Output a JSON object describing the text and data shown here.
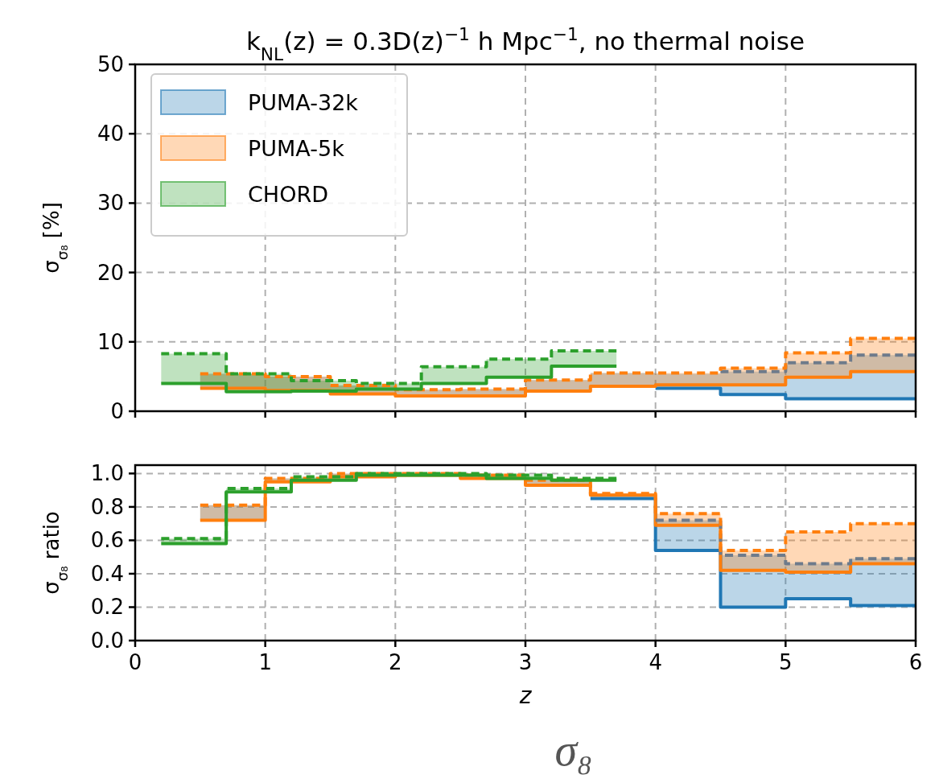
{
  "chart_data": [
    {
      "type": "step",
      "title": "k$_{NL}$(z) = 0.3D(z)$^{−1}$ h Mpc$^{−1}$, no thermal noise",
      "ylabel": "σ$_{σ₈}$ [%]",
      "xlim": [
        0,
        6
      ],
      "xticks": [
        0,
        1,
        2,
        3,
        4,
        5,
        6
      ],
      "ylim": [
        0,
        50
      ],
      "yticks": [
        0,
        10,
        20,
        30,
        40,
        50
      ],
      "tick_labels": "y",
      "grid": true,
      "legend": "top left",
      "series": [
        {
          "name": "PUMA-32k",
          "color": "#1f77b4",
          "line_style": "solid",
          "x": [
            0.5,
            1,
            1.5,
            2,
            2.5,
            3,
            3.5,
            4,
            4.5,
            5,
            5.5,
            6
          ],
          "values": [
            null,
            null,
            null,
            null,
            null,
            null,
            null,
            3.3,
            2.4,
            1.8,
            1.8,
            1.8
          ],
          "lower": [
            3.3,
            3.0,
            2.5,
            2.2,
            2.2,
            2.9,
            3.6,
            3.3,
            2.4,
            1.8,
            1.8,
            1.8
          ],
          "upper": [
            5.4,
            5.0,
            3.7,
            3.1,
            3.2,
            4.5,
            5.5,
            5.4,
            5.7,
            7.0,
            8.1,
            8.1
          ]
        },
        {
          "name": "PUMA-5k",
          "color": "#ff7f0e",
          "line_style": "solid",
          "x": [
            0.5,
            1,
            1.5,
            2,
            2.5,
            3,
            3.5,
            4,
            4.5,
            5,
            5.5,
            6
          ],
          "values": [
            3.3,
            3.0,
            2.5,
            2.2,
            2.2,
            2.9,
            3.6,
            3.8,
            3.8,
            4.9,
            5.7,
            5.7
          ],
          "lower": [
            3.3,
            3.0,
            2.5,
            2.2,
            2.2,
            2.9,
            3.6,
            3.8,
            3.8,
            4.9,
            5.7,
            5.7
          ],
          "upper": [
            5.4,
            5.0,
            3.7,
            3.1,
            3.2,
            4.5,
            5.5,
            5.5,
            6.2,
            8.4,
            10.5,
            10.5
          ]
        },
        {
          "color": "#6e7b8b",
          "line_style": "dashed",
          "x": [
            4.5,
            5,
            5.5,
            6
          ],
          "values": [
            5.7,
            7.0,
            8.1,
            8.1
          ]
        },
        {
          "color": "#ff7f0e",
          "line_style": "dashed",
          "x": [
            0.5,
            1,
            1.5,
            2,
            2.5,
            3,
            3.5,
            4,
            4.5,
            5,
            5.5,
            6
          ],
          "values": [
            5.4,
            5.0,
            3.7,
            3.1,
            3.2,
            4.5,
            5.5,
            5.5,
            6.2,
            8.4,
            10.5,
            10.5
          ]
        },
        {
          "name": "CHORD",
          "color": "#2ca02c",
          "line_style": "solid",
          "x": [
            0.2,
            0.7,
            1.2,
            1.7,
            2.2,
            2.7,
            3.2,
            3.7
          ],
          "values": [
            4.0,
            2.8,
            2.9,
            3.2,
            4.0,
            4.9,
            6.5,
            6.5
          ],
          "lower": [
            4.0,
            2.8,
            2.9,
            3.2,
            4.0,
            4.9,
            6.5,
            6.5
          ],
          "upper": [
            8.3,
            5.4,
            4.4,
            4.0,
            6.4,
            7.5,
            8.7,
            8.7
          ]
        },
        {
          "color": "#2ca02c",
          "line_style": "dashed",
          "x": [
            0.2,
            0.7,
            1.2,
            1.7,
            2.2,
            2.7,
            3.2,
            3.7
          ],
          "values": [
            8.3,
            5.4,
            4.4,
            4.0,
            6.4,
            7.5,
            8.7,
            8.7
          ]
        }
      ]
    },
    {
      "type": "step",
      "ylabel": "σ$_{σ₈}$ ratio",
      "xlabel": "z",
      "xlim": [
        0,
        6
      ],
      "xticks": [
        0,
        1,
        2,
        3,
        4,
        5,
        6
      ],
      "ylim": [
        0,
        1.05
      ],
      "yticks": [
        {
          "value": 0,
          "label": "0.0"
        },
        {
          "value": 0.2,
          "label": "0.2"
        },
        {
          "value": 0.4,
          "label": "0.4"
        },
        {
          "value": 0.6,
          "label": "0.6"
        },
        {
          "value": 0.8,
          "label": "0.8"
        },
        {
          "value": 1,
          "label": "1.0"
        }
      ],
      "grid": true,
      "annotations": [
        "σ₈"
      ],
      "series": [
        {
          "color": "#1f77b4",
          "line_style": "solid",
          "x": [
            0.5,
            1,
            1.5,
            2,
            2.5,
            3,
            3.5,
            4,
            4.5,
            5,
            5.5,
            6
          ],
          "values": [
            null,
            null,
            null,
            null,
            null,
            null,
            0.85,
            0.54,
            0.2,
            0.25,
            0.21,
            0.21
          ],
          "lower": [
            0.72,
            0.95,
            0.98,
            0.99,
            0.97,
            0.93,
            0.85,
            0.54,
            0.2,
            0.25,
            0.21,
            0.21
          ],
          "upper": [
            0.81,
            0.97,
            1.0,
            1.0,
            0.99,
            0.96,
            0.88,
            0.72,
            0.51,
            0.46,
            0.49,
            0.49
          ]
        },
        {
          "color": "#ff7f0e",
          "line_style": "solid",
          "x": [
            0.5,
            1,
            1.5,
            2,
            2.5,
            3,
            3.5,
            4,
            4.5,
            5,
            5.5,
            6
          ],
          "values": [
            0.72,
            0.95,
            0.98,
            0.99,
            0.97,
            0.93,
            0.87,
            0.69,
            0.42,
            0.41,
            0.46,
            0.46
          ],
          "lower": [
            0.72,
            0.95,
            0.98,
            0.99,
            0.97,
            0.93,
            0.87,
            0.69,
            0.42,
            0.41,
            0.46,
            0.46
          ],
          "upper": [
            0.81,
            0.97,
            1.0,
            1.0,
            0.99,
            0.96,
            0.88,
            0.76,
            0.54,
            0.65,
            0.7,
            0.7
          ]
        },
        {
          "color": "#6e7b8b",
          "line_style": "dashed",
          "x": [
            4,
            4.5,
            5,
            5.5,
            6
          ],
          "values": [
            0.72,
            0.51,
            0.46,
            0.49,
            0.49
          ]
        },
        {
          "color": "#ff7f0e",
          "line_style": "dashed",
          "x": [
            0.5,
            1,
            1.5,
            2,
            2.5,
            3,
            3.5,
            4,
            4.5,
            5,
            5.5,
            6
          ],
          "values": [
            0.81,
            0.97,
            1.0,
            1.0,
            0.99,
            0.96,
            0.88,
            0.76,
            0.54,
            0.65,
            0.7,
            0.7
          ]
        },
        {
          "color": "#2ca02c",
          "line_style": "solid",
          "x": [
            0.2,
            0.7,
            1.2,
            1.7,
            2.2,
            2.7,
            3.2,
            3.7
          ],
          "values": [
            0.58,
            0.89,
            0.96,
            0.99,
            0.99,
            0.97,
            0.96,
            0.96
          ],
          "lower": [
            0.58,
            0.89,
            0.96,
            0.99,
            0.99,
            0.97,
            0.96,
            0.96
          ],
          "upper": [
            0.61,
            0.91,
            0.98,
            1.0,
            1.0,
            0.99,
            0.97,
            0.97
          ]
        },
        {
          "color": "#2ca02c",
          "line_style": "dashed",
          "x": [
            0.2,
            0.7,
            1.2,
            1.7,
            2.2,
            2.7,
            3.2,
            3.7
          ],
          "values": [
            0.61,
            0.91,
            0.98,
            1.0,
            1.0,
            0.99,
            0.97,
            0.97
          ]
        }
      ]
    }
  ]
}
